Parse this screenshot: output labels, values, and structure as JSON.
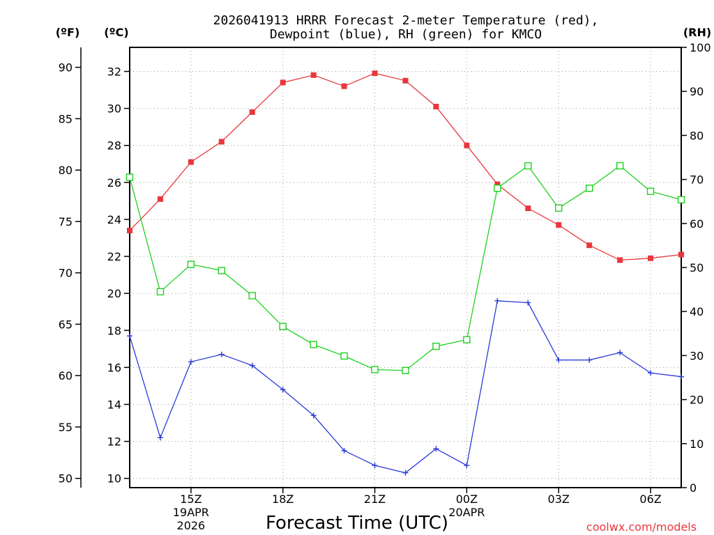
{
  "chart_data": {
    "type": "line",
    "title_lines": [
      "2026041913 HRRR Forecast 2-meter Temperature (red),",
      "Dewpoint (blue), RH (green) for KMCO"
    ],
    "xlabel": "Forecast Time (UTC)",
    "credit": "coolwx.com/models",
    "unit_labels": {
      "fahrenheit": "(ºF)",
      "celsius": "(ºC)",
      "rh": "(RH)"
    },
    "x_range": [
      13,
      31
    ],
    "x_ticks": [
      {
        "x": 15,
        "lines": [
          "15Z",
          "19APR",
          "2026"
        ]
      },
      {
        "x": 18,
        "lines": [
          "18Z"
        ]
      },
      {
        "x": 21,
        "lines": [
          "21Z"
        ]
      },
      {
        "x": 24,
        "lines": [
          "00Z",
          "20APR"
        ]
      },
      {
        "x": 27,
        "lines": [
          "03Z"
        ]
      },
      {
        "x": 30,
        "lines": [
          "06Z"
        ]
      }
    ],
    "celsius_axis": {
      "range": [
        9.5,
        33.3
      ],
      "ticks": [
        10,
        12,
        14,
        16,
        18,
        20,
        22,
        24,
        26,
        28,
        30,
        32
      ]
    },
    "fahrenheit_axis": {
      "ticks": [
        50,
        55,
        60,
        65,
        70,
        75,
        80,
        85,
        90
      ]
    },
    "rh_axis": {
      "range": [
        0,
        100
      ],
      "ticks": [
        0,
        10,
        20,
        30,
        40,
        50,
        60,
        70,
        80,
        90,
        100
      ]
    },
    "series": [
      {
        "name": "2-meter Temperature",
        "axis": "celsius",
        "color": "#e8373c",
        "marker": "filled-square",
        "x": [
          13,
          14,
          15,
          16,
          17,
          18,
          19,
          20,
          21,
          22,
          23,
          24,
          25,
          26,
          27,
          28,
          29,
          30,
          31
        ],
        "values": [
          23.4,
          25.1,
          27.1,
          28.2,
          29.8,
          31.4,
          31.8,
          31.2,
          31.9,
          31.5,
          30.1,
          28.0,
          25.9,
          24.6,
          23.7,
          22.6,
          21.8,
          21.9,
          22.1
        ]
      },
      {
        "name": "Dewpoint",
        "axis": "celsius",
        "color": "#2b3bd6",
        "marker": "plus",
        "x": [
          13,
          14,
          15,
          16,
          17,
          18,
          19,
          20,
          21,
          22,
          23,
          24,
          25,
          26,
          27,
          28,
          29,
          30,
          31
        ],
        "values": [
          17.7,
          12.2,
          16.3,
          16.7,
          16.1,
          14.8,
          13.4,
          11.5,
          10.7,
          10.3,
          11.6,
          10.7,
          19.6,
          19.5,
          16.4,
          16.4,
          16.8,
          15.7,
          15.5
        ]
      },
      {
        "name": "RH",
        "axis": "rh",
        "color": "#1fd11f",
        "marker": "open-square",
        "x": [
          13,
          14,
          15,
          16,
          17,
          18,
          19,
          20,
          21,
          22,
          23,
          24,
          25,
          26,
          27,
          28,
          29,
          30,
          31
        ],
        "values": [
          70.5,
          44.5,
          50.7,
          49.3,
          43.6,
          36.6,
          32.5,
          29.9,
          26.8,
          26.6,
          32.1,
          33.6,
          68.0,
          73.1,
          63.5,
          68.0,
          73.1,
          67.3,
          65.4
        ]
      }
    ]
  }
}
